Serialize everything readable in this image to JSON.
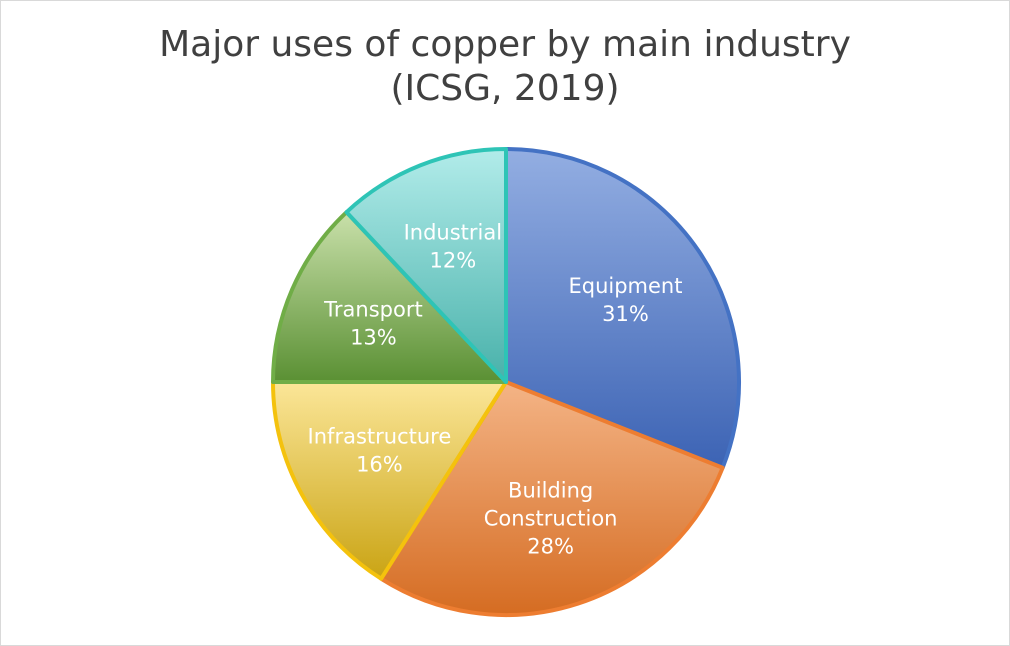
{
  "chart_data": {
    "type": "pie",
    "title_lines": [
      "Major uses of copper by main industry",
      "(ICSG, 2019)"
    ],
    "start_angle_deg": 0,
    "direction": "clockwise",
    "slices": [
      {
        "name": "Equipment",
        "label_lines": [
          "Equipment"
        ],
        "value": 31,
        "value_label": "31%",
        "fill_light": "#93aee2",
        "fill_dark": "#3c63b4",
        "stroke": "#4472c4"
      },
      {
        "name": "Building Construction",
        "label_lines": [
          "Building",
          "Construction"
        ],
        "value": 28,
        "value_label": "28%",
        "fill_light": "#f4b486",
        "fill_dark": "#d56c22",
        "stroke": "#ed7d31"
      },
      {
        "name": "Infrastructure",
        "label_lines": [
          "Infrastructure"
        ],
        "value": 16,
        "value_label": "16%",
        "fill_light": "#fbe698",
        "fill_dark": "#caa414",
        "stroke": "#f4c20d"
      },
      {
        "name": "Transport",
        "label_lines": [
          "Transport"
        ],
        "value": 13,
        "value_label": "13%",
        "fill_light": "#c9e0aa",
        "fill_dark": "#5a9033",
        "stroke": "#70ad47"
      },
      {
        "name": "Industrial",
        "label_lines": [
          "Industrial"
        ],
        "value": 12,
        "value_label": "12%",
        "fill_light": "#b2ecea",
        "fill_dark": "#48b1aa",
        "stroke": "#2ec4b6"
      }
    ]
  }
}
